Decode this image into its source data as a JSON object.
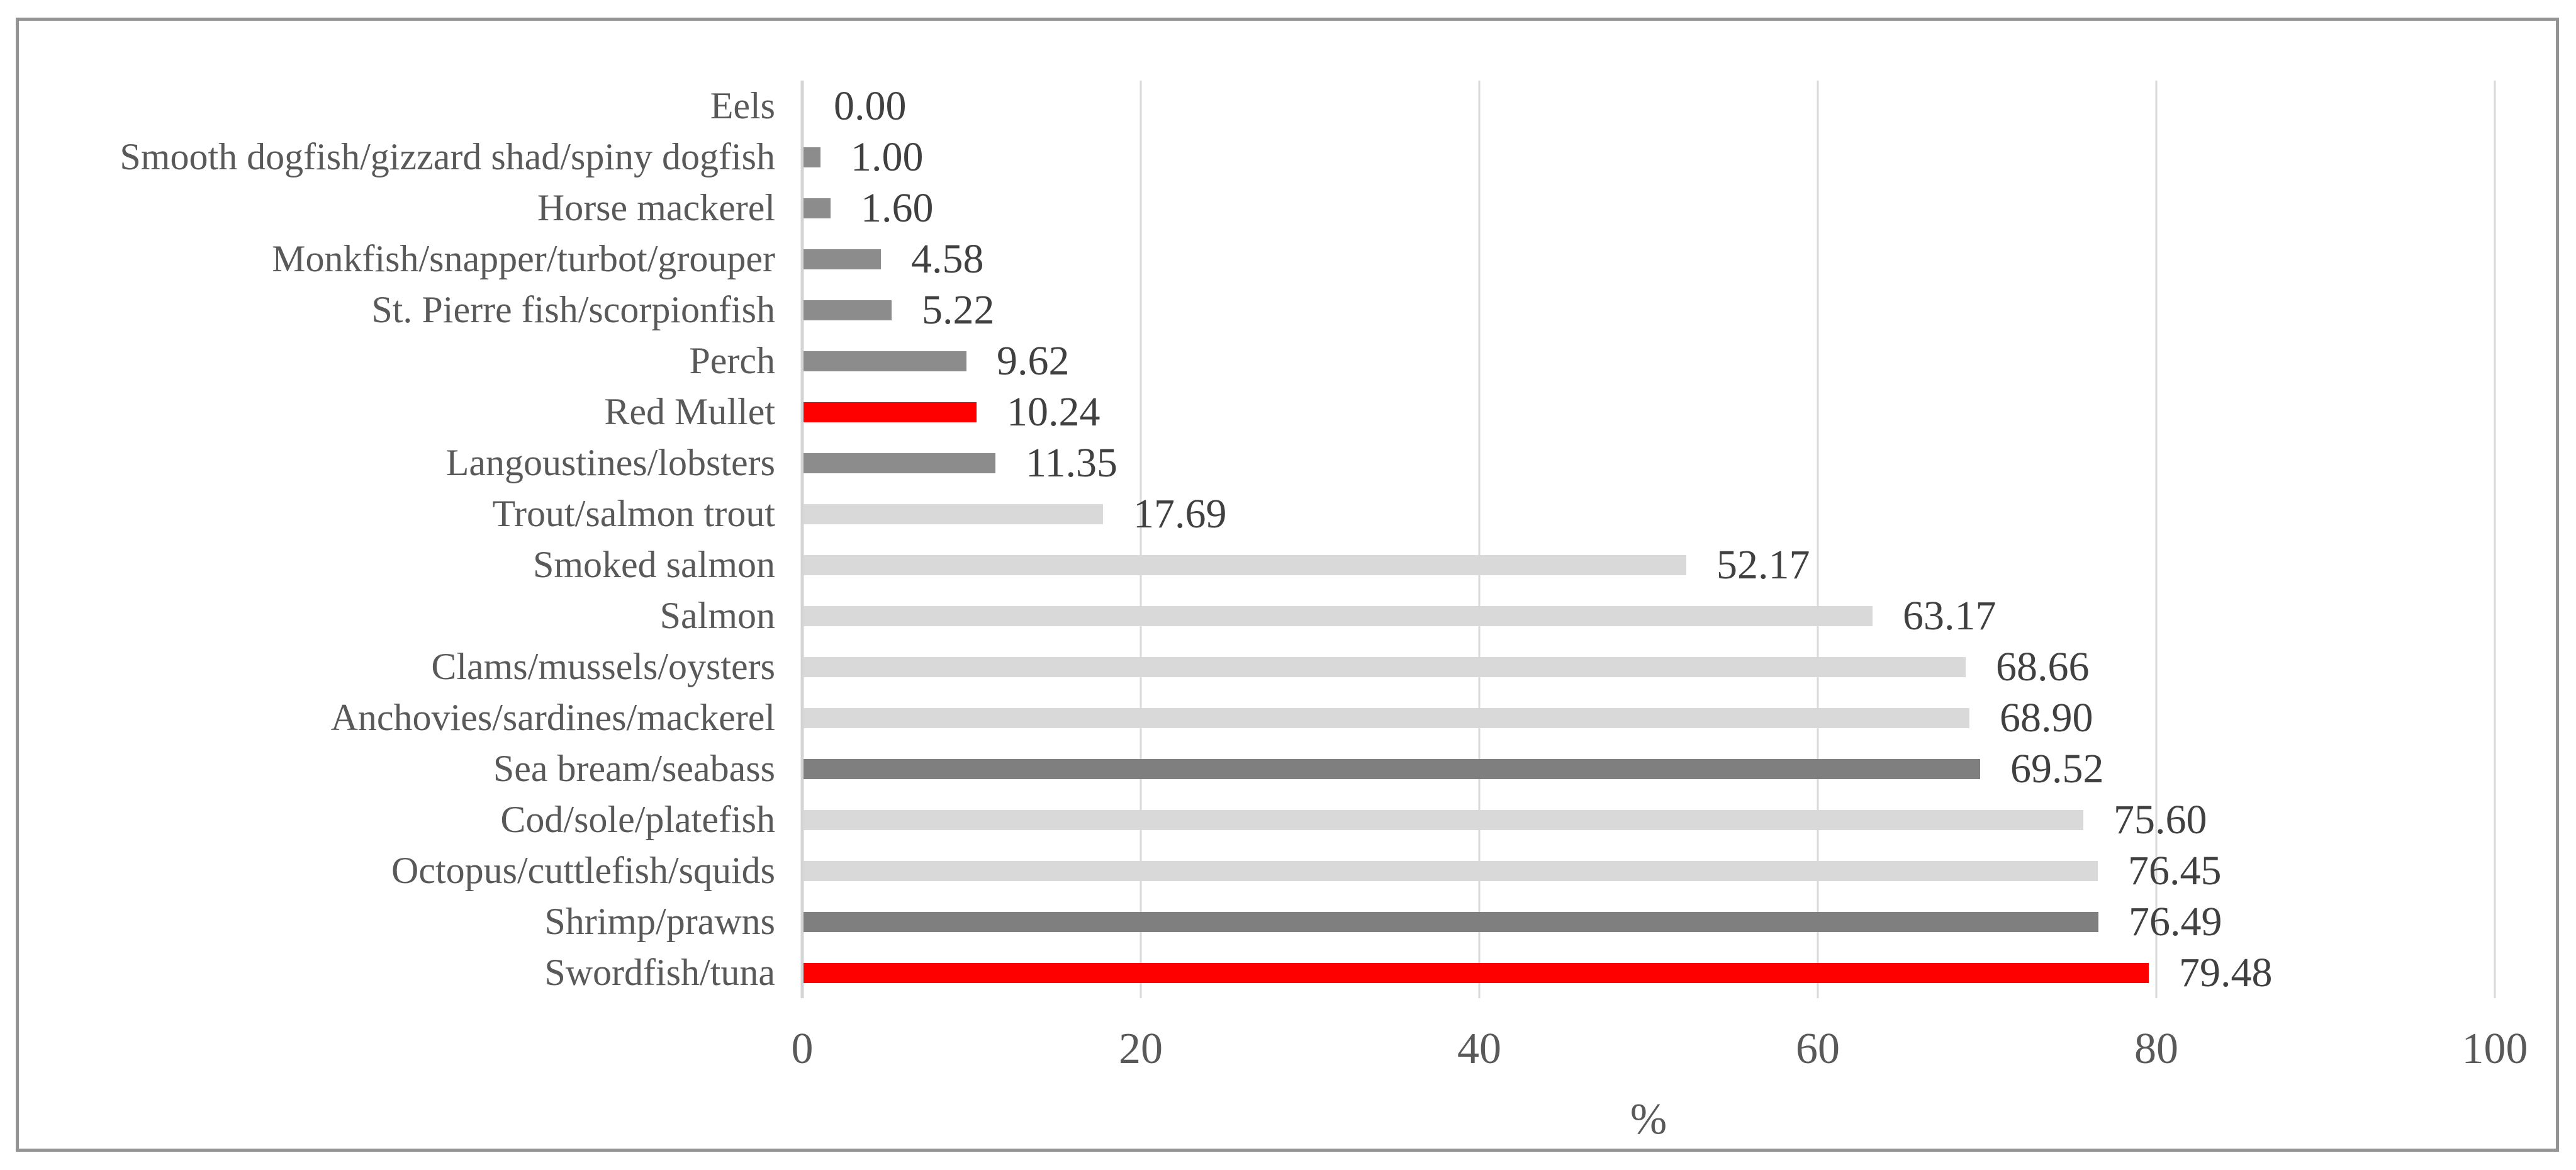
{
  "chart_data": {
    "type": "bar",
    "orientation": "horizontal",
    "title": "",
    "xlabel": "%",
    "ylabel": "",
    "xlim": [
      0,
      100
    ],
    "x_ticks": [
      0,
      20,
      40,
      60,
      80,
      100
    ],
    "grid": true,
    "legend": false,
    "value_label_decimals": 2,
    "bars": [
      {
        "label": "Eels",
        "value": 0.0,
        "display": "0.00",
        "color": "medium"
      },
      {
        "label": "Smooth dogfish/gizzard shad/spiny dogfish",
        "value": 1.0,
        "display": "1.00",
        "color": "medium"
      },
      {
        "label": "Horse mackerel",
        "value": 1.6,
        "display": "1.60",
        "color": "medium"
      },
      {
        "label": "Monkfish/snapper/turbot/grouper",
        "value": 4.58,
        "display": "4.58",
        "color": "medium"
      },
      {
        "label": "St. Pierre fish/scorpionfish",
        "value": 5.22,
        "display": "5.22",
        "color": "medium"
      },
      {
        "label": "Perch",
        "value": 9.62,
        "display": "9.62",
        "color": "medium"
      },
      {
        "label": "Red Mullet",
        "value": 10.24,
        "display": "10.24",
        "color": "red"
      },
      {
        "label": "Langoustines/lobsters",
        "value": 11.35,
        "display": "11.35",
        "color": "medium"
      },
      {
        "label": "Trout/salmon trout",
        "value": 17.69,
        "display": "17.69",
        "color": "light"
      },
      {
        "label": "Smoked salmon",
        "value": 52.17,
        "display": "52.17",
        "color": "light"
      },
      {
        "label": "Salmon",
        "value": 63.17,
        "display": "63.17",
        "color": "light"
      },
      {
        "label": "Clams/mussels/oysters",
        "value": 68.66,
        "display": "68.66",
        "color": "light"
      },
      {
        "label": "Anchovies/sardines/mackerel",
        "value": 68.9,
        "display": "68.90",
        "color": "light"
      },
      {
        "label": "Sea bream/seabass",
        "value": 69.52,
        "display": "69.52",
        "color": "dark"
      },
      {
        "label": "Cod/sole/platefish",
        "value": 75.6,
        "display": "75.60",
        "color": "light"
      },
      {
        "label": "Octopus/cuttlefish/squids",
        "value": 76.45,
        "display": "76.45",
        "color": "light"
      },
      {
        "label": "Shrimp/prawns",
        "value": 76.49,
        "display": "76.49",
        "color": "dark"
      },
      {
        "label": "Swordfish/tuna",
        "value": 79.48,
        "display": "79.48",
        "color": "red"
      }
    ]
  },
  "colors": {
    "bar_light": "#d9d9d9",
    "bar_medium": "#8c8c8c",
    "bar_dark": "#7f7f7f",
    "bar_red": "#ff0000",
    "gridline": "#d9d9d9",
    "zero_axis_line": "#d4d4d4",
    "category_text": "#595959",
    "value_text": "#404040",
    "tick_text": "#595959",
    "frame_border": "#949494"
  }
}
